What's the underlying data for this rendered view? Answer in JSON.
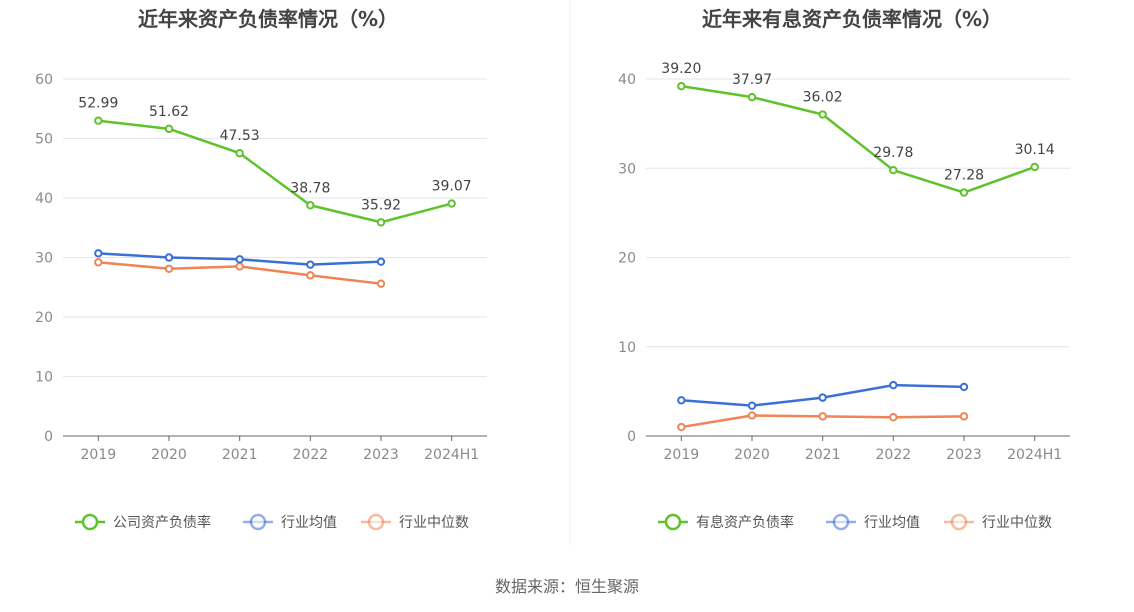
{
  "source": "数据来源：恒生聚源",
  "chart_data": [
    {
      "type": "line",
      "title": "近年来资产负债率情况（%）",
      "categories": [
        "2019",
        "2020",
        "2021",
        "2022",
        "2023",
        "2024H1"
      ],
      "ylim": [
        0,
        60
      ],
      "yticks": [
        0,
        10,
        20,
        30,
        40,
        50,
        60
      ],
      "grid": true,
      "legend_position": "bottom",
      "series": [
        {
          "name": "公司资产负债率",
          "color": "#5ec32a",
          "labels": true,
          "values": [
            52.99,
            51.62,
            47.53,
            38.78,
            35.92,
            39.07
          ]
        },
        {
          "name": "行业均值",
          "color": "#3a6fd8",
          "labels": false,
          "values": [
            30.7,
            30.0,
            29.7,
            28.8,
            29.3,
            null
          ]
        },
        {
          "name": "行业中位数",
          "color": "#ef8455",
          "labels": false,
          "values": [
            29.2,
            28.1,
            28.5,
            27.0,
            25.6,
            null
          ]
        }
      ]
    },
    {
      "type": "line",
      "title": "近年来有息资产负债率情况（%）",
      "categories": [
        "2019",
        "2020",
        "2021",
        "2022",
        "2023",
        "2024H1"
      ],
      "ylim": [
        0,
        40
      ],
      "yticks": [
        0,
        10,
        20,
        30,
        40
      ],
      "grid": true,
      "legend_position": "bottom",
      "series": [
        {
          "name": "有息资产负债率",
          "color": "#5ec32a",
          "labels": true,
          "values": [
            39.2,
            37.97,
            36.02,
            29.78,
            27.28,
            30.14
          ]
        },
        {
          "name": "行业均值",
          "color": "#3a6fd8",
          "labels": false,
          "values": [
            4.0,
            3.4,
            4.3,
            5.7,
            5.5,
            null
          ]
        },
        {
          "name": "行业中位数",
          "color": "#ef8455",
          "labels": false,
          "values": [
            1.0,
            2.3,
            2.2,
            2.1,
            2.2,
            null
          ]
        }
      ]
    }
  ]
}
